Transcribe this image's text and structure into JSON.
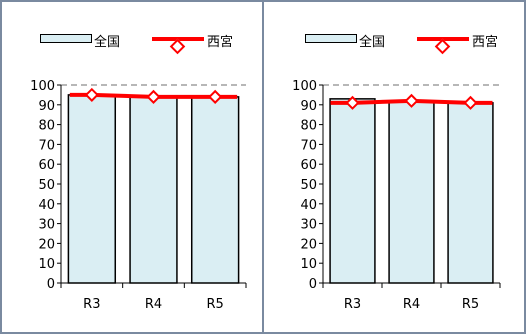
{
  "legend": {
    "national": "全国",
    "nishinomiya": "西宮"
  },
  "chart_data": [
    {
      "type": "bar",
      "categories": [
        "R3",
        "R4",
        "R5"
      ],
      "series": [
        {
          "name": "全国",
          "type": "bar",
          "values": [
            95,
            94,
            94
          ],
          "color": "#daeef3"
        },
        {
          "name": "西宮",
          "type": "line",
          "values": [
            95,
            94,
            94
          ],
          "color": "#ff0000"
        }
      ],
      "ylim": [
        0,
        100
      ],
      "yticks": [
        0,
        10,
        20,
        30,
        40,
        50,
        60,
        70,
        80,
        90,
        100
      ],
      "gridline_at": [
        100
      ],
      "legend_position": "top"
    },
    {
      "type": "bar",
      "categories": [
        "R3",
        "R4",
        "R5"
      ],
      "series": [
        {
          "name": "全国",
          "type": "bar",
          "values": [
            93,
            92,
            91
          ],
          "color": "#daeef3"
        },
        {
          "name": "西宮",
          "type": "line",
          "values": [
            91,
            92,
            91
          ],
          "color": "#ff0000"
        }
      ],
      "ylim": [
        0,
        100
      ],
      "yticks": [
        0,
        10,
        20,
        30,
        40,
        50,
        60,
        70,
        80,
        90,
        100
      ],
      "gridline_at": [
        100
      ],
      "legend_position": "top"
    }
  ]
}
